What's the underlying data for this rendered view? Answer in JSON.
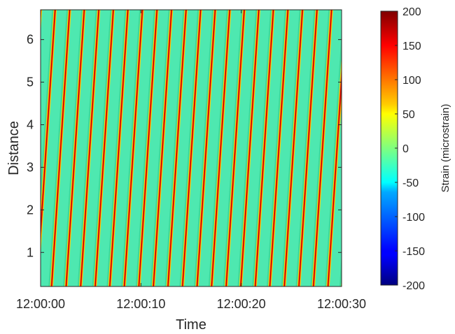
{
  "chart_data": {
    "type": "heatmap",
    "title": "",
    "xlabel": "Time",
    "ylabel": "Distance",
    "x_ticks": [
      "12:00:00",
      "12:00:10",
      "12:00:20",
      "12:00:30"
    ],
    "x_tick_seconds": [
      0,
      10,
      20,
      30
    ],
    "xlim_seconds": [
      0,
      30
    ],
    "y_ticks": [
      1,
      2,
      3,
      4,
      5,
      6
    ],
    "ylim": [
      0.2,
      6.7
    ],
    "grid": false,
    "colormap": "jet",
    "colorbar": {
      "label": "Strain (microstrain)",
      "ticks": [
        200,
        150,
        100,
        50,
        0,
        -50,
        -100,
        -150,
        -200
      ],
      "range": [
        -200,
        200
      ],
      "placement": "right"
    },
    "pattern": {
      "description_values": "diagonal strain bands, peak red/orange on a background near 0",
      "background_strain": 0,
      "band_peak_strain": 190,
      "band_period_seconds": 1.45,
      "band_slope_distance_per_second": 3.6
    }
  },
  "colors": {
    "background_cyan_green": "#4ee8b0",
    "band_red": "#c40000",
    "band_yellow": "#ffd800",
    "text": "#262626",
    "axis": "#262626"
  }
}
